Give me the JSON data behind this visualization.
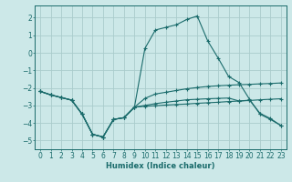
{
  "xlabel": "Humidex (Indice chaleur)",
  "background_color": "#cce8e8",
  "grid_color": "#aacccc",
  "line_color": "#1a6b6b",
  "xlim": [
    -0.5,
    23.5
  ],
  "ylim": [
    -5.5,
    2.7
  ],
  "xticks": [
    0,
    1,
    2,
    3,
    4,
    5,
    6,
    7,
    8,
    9,
    10,
    11,
    12,
    13,
    14,
    15,
    16,
    17,
    18,
    19,
    20,
    21,
    22,
    23
  ],
  "yticks": [
    -5,
    -4,
    -3,
    -2,
    -1,
    0,
    1,
    2
  ],
  "series": [
    {
      "x": [
        0,
        1,
        2,
        3,
        4,
        5,
        6,
        7,
        8,
        9,
        10,
        11,
        12,
        13,
        14,
        15,
        16,
        17,
        18,
        19,
        20,
        21,
        22,
        23
      ],
      "y": [
        -2.2,
        -2.4,
        -2.55,
        -2.7,
        -3.5,
        -4.65,
        -4.8,
        -3.8,
        -3.7,
        -3.1,
        0.25,
        1.3,
        1.45,
        1.6,
        1.9,
        2.1,
        0.68,
        -0.3,
        -1.35,
        -1.7,
        -2.65,
        -3.5,
        -3.8,
        -4.15
      ]
    },
    {
      "x": [
        0,
        1,
        2,
        3,
        4,
        5,
        6,
        7,
        8,
        9,
        10,
        11,
        12,
        13,
        14,
        15,
        16,
        17,
        18,
        19,
        20,
        21,
        22,
        23
      ],
      "y": [
        -2.2,
        -2.4,
        -2.55,
        -2.7,
        -3.5,
        -4.65,
        -4.8,
        -3.8,
        -3.7,
        -3.1,
        -2.6,
        -2.35,
        -2.25,
        -2.15,
        -2.05,
        -1.98,
        -1.92,
        -1.88,
        -1.85,
        -1.82,
        -1.8,
        -1.77,
        -1.75,
        -1.72
      ]
    },
    {
      "x": [
        0,
        1,
        2,
        3,
        4,
        5,
        6,
        7,
        8,
        9,
        10,
        11,
        12,
        13,
        14,
        15,
        16,
        17,
        18,
        19,
        20,
        21,
        22,
        23
      ],
      "y": [
        -2.2,
        -2.4,
        -2.55,
        -2.7,
        -3.5,
        -4.65,
        -4.8,
        -3.8,
        -3.7,
        -3.1,
        -3.0,
        -2.9,
        -2.82,
        -2.75,
        -2.68,
        -2.65,
        -2.62,
        -2.6,
        -2.58,
        -2.75,
        -2.7,
        -3.45,
        -3.75,
        -4.15
      ]
    },
    {
      "x": [
        0,
        1,
        2,
        3,
        4,
        5,
        6,
        7,
        8,
        9,
        10,
        11,
        12,
        13,
        14,
        15,
        16,
        17,
        18,
        19,
        20,
        21,
        22,
        23
      ],
      "y": [
        -2.2,
        -2.4,
        -2.55,
        -2.7,
        -3.5,
        -4.65,
        -4.8,
        -3.8,
        -3.7,
        -3.1,
        -3.05,
        -3.02,
        -2.98,
        -2.95,
        -2.92,
        -2.88,
        -2.85,
        -2.82,
        -2.78,
        -2.75,
        -2.72,
        -2.68,
        -2.65,
        -2.62
      ]
    }
  ]
}
